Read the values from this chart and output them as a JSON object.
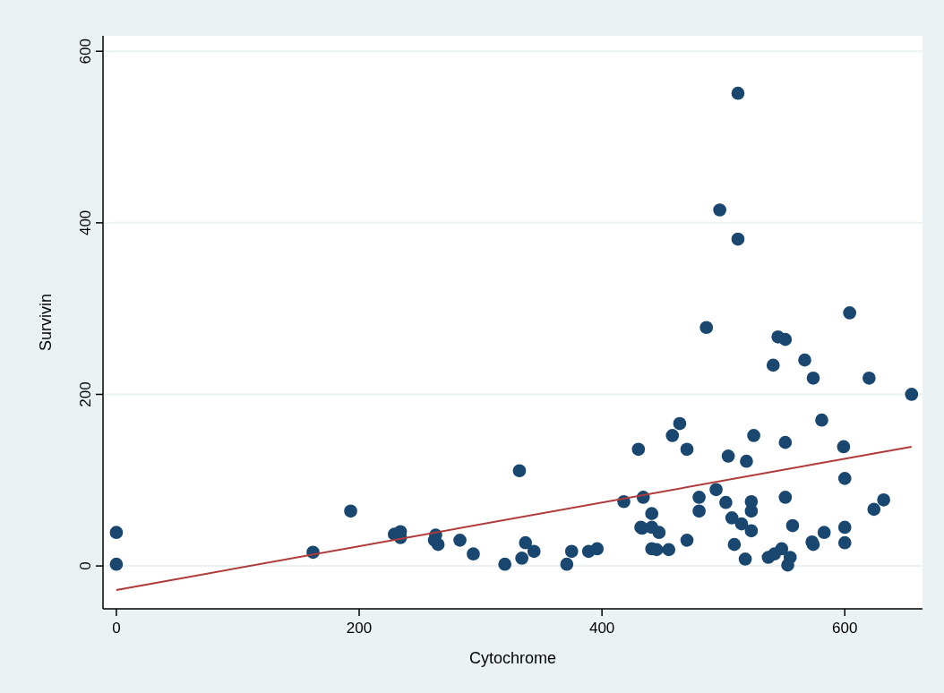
{
  "chart_data": {
    "type": "scatter",
    "xlabel": "Cytochrome",
    "ylabel": "Survivin",
    "xlim": [
      -11,
      664
    ],
    "ylim": [
      -50,
      618
    ],
    "xticks": [
      0,
      200,
      400,
      600
    ],
    "yticks": [
      0,
      200,
      400,
      600
    ],
    "grid": "y",
    "series": [
      {
        "marker": "circle",
        "color": "#1a476f",
        "x": [
          0,
          0,
          162,
          193,
          229,
          234,
          234,
          263,
          265,
          262,
          283,
          294,
          320,
          332,
          334,
          337,
          344,
          371,
          375,
          389,
          396,
          418,
          430,
          434,
          433,
          441,
          441,
          486,
          545,
          551,
          541,
          567,
          574,
          604,
          620,
          655,
          581,
          464,
          458,
          470,
          504,
          519,
          525,
          551,
          599,
          600,
          432,
          441,
          447,
          445,
          455,
          470,
          480,
          480,
          494,
          502,
          507,
          515,
          523,
          523,
          523,
          509,
          518,
          551,
          557,
          583,
          573,
          574,
          600,
          600,
          624,
          632,
          537,
          542,
          548,
          555,
          553,
          512,
          497,
          512
        ],
        "values": [
          39,
          2,
          16,
          64,
          37,
          40,
          33,
          36,
          25,
          30,
          30,
          14,
          2,
          111,
          9,
          27,
          17,
          2,
          17,
          17,
          20,
          75,
          136,
          80,
          44,
          61,
          20,
          278,
          267,
          264,
          234,
          240,
          219,
          295,
          219,
          200,
          170,
          166,
          152,
          136,
          128,
          122,
          152,
          144,
          139,
          102,
          45,
          45,
          39,
          19,
          19,
          30,
          80,
          64,
          89,
          74,
          56,
          49,
          75,
          64,
          41,
          25,
          8,
          80,
          47,
          39,
          28,
          25,
          45,
          27,
          66,
          77,
          10,
          14,
          20,
          10,
          1,
          551,
          415,
          381
        ]
      },
      {
        "type": "line",
        "marker": "none",
        "color": "#b03a3a",
        "x": [
          0,
          655
        ],
        "values": [
          -28,
          139
        ]
      }
    ]
  }
}
